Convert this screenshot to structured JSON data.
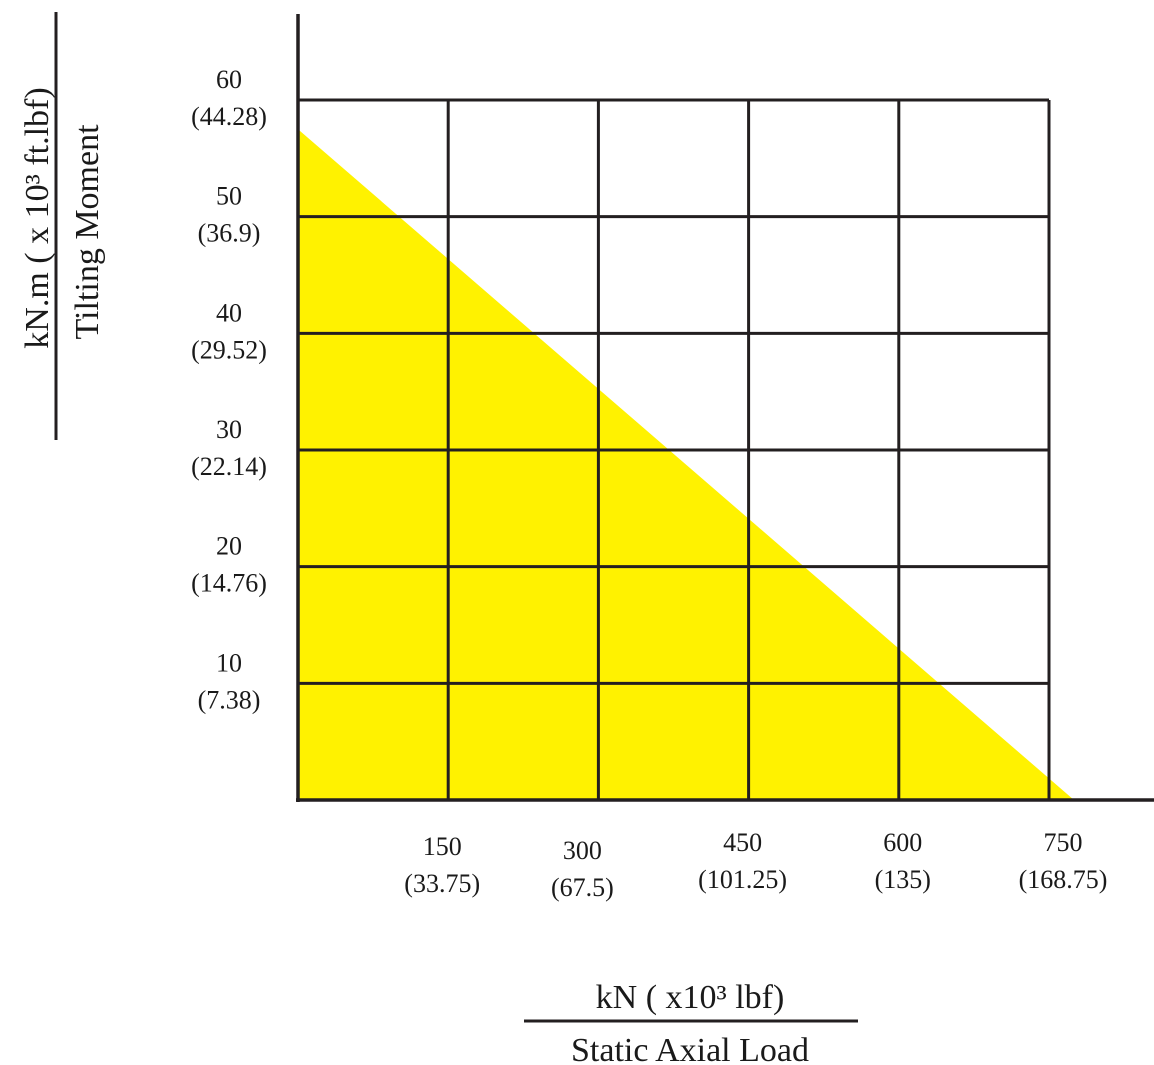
{
  "chart_data": {
    "type": "area",
    "title": "",
    "fill_color": "#FFF200",
    "line_color": "#231F20",
    "grid": true,
    "xlim": [
      0,
      750
    ],
    "ylim": [
      0,
      60
    ],
    "x_ticks": [
      {
        "value": 150,
        "label": "150",
        "sublabel": "(33.75)"
      },
      {
        "value": 300,
        "label": "300",
        "sublabel": "(67.5)"
      },
      {
        "value": 450,
        "label": "450",
        "sublabel": "(101.25)"
      },
      {
        "value": 600,
        "label": "600",
        "sublabel": "(135)"
      },
      {
        "value": 750,
        "label": "750",
        "sublabel": "(168.75)"
      }
    ],
    "y_ticks": [
      {
        "value": 10,
        "label": "10",
        "sublabel": "(7.38)"
      },
      {
        "value": 20,
        "label": "20",
        "sublabel": "(14.76)"
      },
      {
        "value": 30,
        "label": "30",
        "sublabel": "(22.14)"
      },
      {
        "value": 40,
        "label": "40",
        "sublabel": "(29.52)"
      },
      {
        "value": 50,
        "label": "50",
        "sublabel": "(36.9)"
      },
      {
        "value": 60,
        "label": "60",
        "sublabel": "(44.28)"
      }
    ],
    "xlabel_units": "kN ( x10³ lbf)",
    "xlabel": "Static Axial Load",
    "ylabel_units": "kN.m ( x 10³  ft.lbf)",
    "ylabel": "Tilting Moment",
    "series": [
      {
        "x": [
          0,
          775
        ],
        "y": [
          57.5,
          0
        ]
      }
    ]
  }
}
